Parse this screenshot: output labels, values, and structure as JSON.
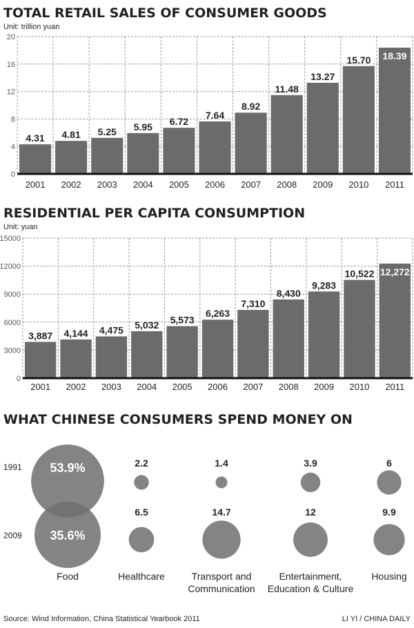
{
  "chart_data": [
    {
      "type": "bar",
      "title": "TOTAL RETAIL SALES OF CONSUMER GOODS",
      "unit": "Unit: trillion yuan",
      "categories": [
        "2001",
        "2002",
        "2003",
        "2004",
        "2005",
        "2006",
        "2007",
        "2008",
        "2009",
        "2010",
        "2011"
      ],
      "values": [
        4.31,
        4.81,
        5.25,
        5.95,
        6.72,
        7.64,
        8.92,
        11.48,
        13.27,
        15.7,
        18.39
      ],
      "labels": [
        "4.31",
        "4.81",
        "5.25",
        "5.95",
        "6.72",
        "7.64",
        "8.92",
        "11.48",
        "13.27",
        "15.70",
        "18.39"
      ],
      "yticks": [
        "0",
        "4",
        "8",
        "12",
        "16",
        "20"
      ],
      "ylim": [
        0,
        20
      ],
      "grid": true,
      "color": "#6b6b6e"
    },
    {
      "type": "bar",
      "title": "RESIDENTIAL PER CAPITA CONSUMPTION",
      "unit": "Unit: yuan",
      "categories": [
        "2001",
        "2002",
        "2003",
        "2004",
        "2005",
        "2006",
        "2007",
        "2008",
        "2009",
        "2010",
        "2011"
      ],
      "values": [
        3887,
        4144,
        4475,
        5032,
        5573,
        6263,
        7310,
        8430,
        9283,
        10522,
        12272
      ],
      "labels": [
        "3,887",
        "4,144",
        "4,475",
        "5,032",
        "5,573",
        "6,263",
        "7,310",
        "8,430",
        "9,283",
        "10,522",
        "12,272"
      ],
      "yticks": [
        "0",
        "3000",
        "6000",
        "9000",
        "12000",
        "15000"
      ],
      "ylim": [
        0,
        15000
      ],
      "grid": true,
      "color": "#6b6b6e"
    },
    {
      "type": "bubble",
      "title": "WHAT CHINESE CONSUMERS SPEND MONEY ON",
      "rows": [
        "1991",
        "2009"
      ],
      "categories": [
        {
          "lines": [
            "Food"
          ],
          "values": [
            53.9,
            35.6
          ],
          "labels": [
            "53.9%",
            "35.6%"
          ]
        },
        {
          "lines": [
            "Healthcare"
          ],
          "values": [
            2.2,
            6.5
          ],
          "labels": [
            "2.2",
            "6.5"
          ]
        },
        {
          "lines": [
            "Transport and",
            "Communication"
          ],
          "values": [
            1.4,
            14.7
          ],
          "labels": [
            "1.4",
            "14.7"
          ]
        },
        {
          "lines": [
            "Entertainment,",
            "Education & Culture"
          ],
          "values": [
            3.9,
            12
          ],
          "labels": [
            "3.9",
            "12"
          ]
        },
        {
          "lines": [
            "Housing"
          ],
          "values": [
            6,
            9.9
          ],
          "labels": [
            "6",
            "9.9"
          ]
        }
      ],
      "color": "#6f6f72"
    }
  ],
  "footer": {
    "source": "Source: Wind Information, China Statistical Yearbook 2011",
    "credit": "LI YI / CHINA DAILY"
  }
}
